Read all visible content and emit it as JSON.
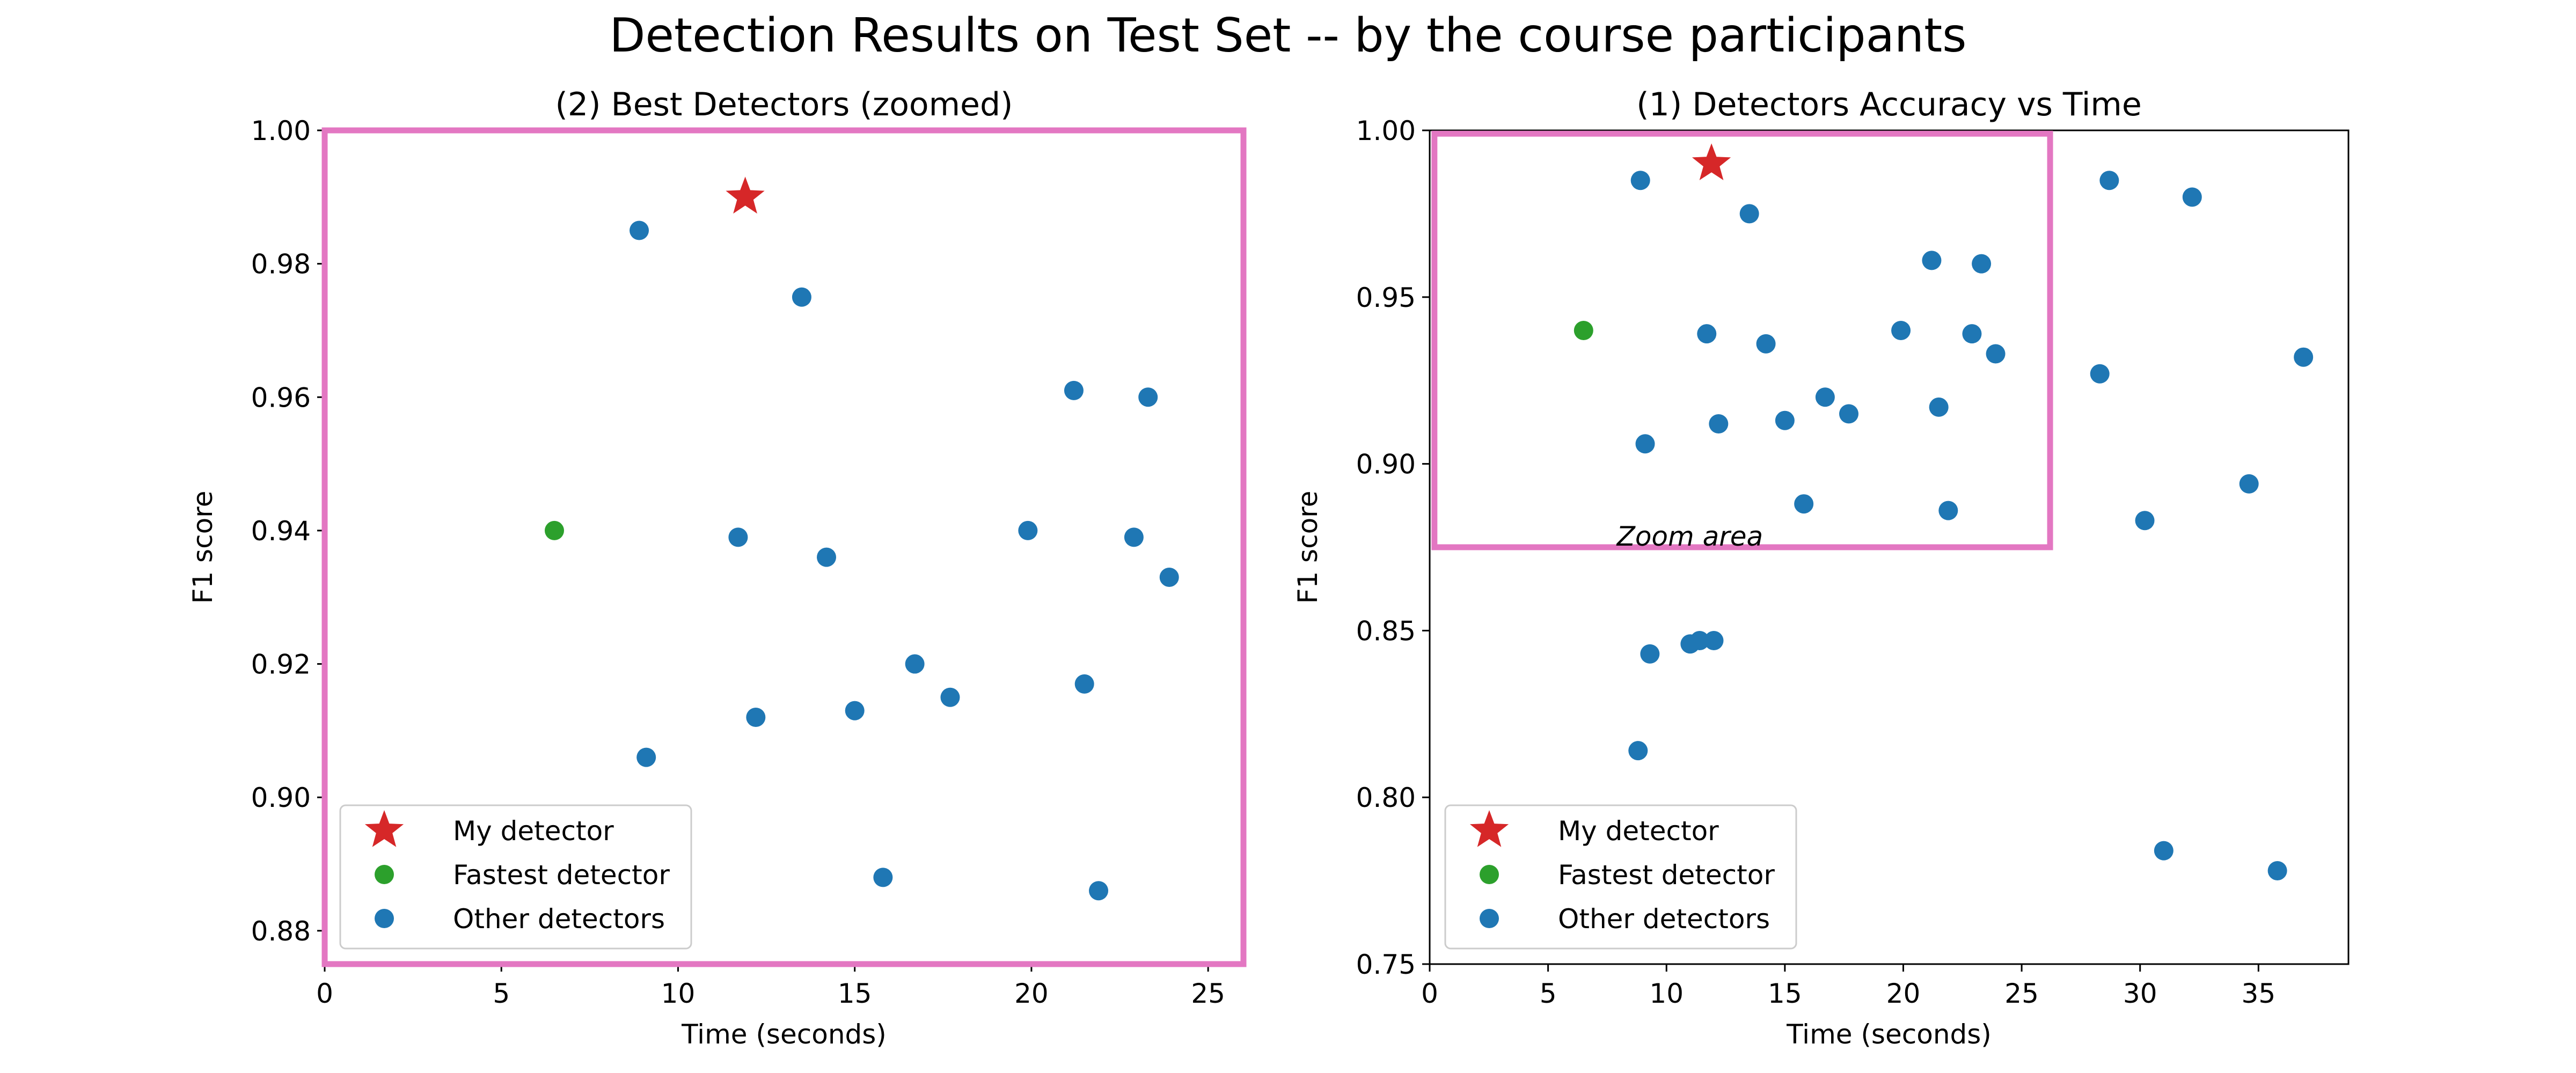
{
  "figure": {
    "suptitle": "Detection Results on Test Set -- by the course participants"
  },
  "colors": {
    "my_detector": "#d62728",
    "fastest_detector": "#2ca02c",
    "other_detectors": "#1f77b4",
    "zoom_box": "#e377c2"
  },
  "chart_data": [
    {
      "type": "scatter",
      "title": "(2) Best Detectors (zoomed)",
      "xlabel": "Time (seconds)",
      "ylabel": "F1 score",
      "xlim": [
        0,
        26
      ],
      "ylim": [
        0.875,
        1.0
      ],
      "xticks": [
        0,
        5,
        10,
        15,
        20,
        25
      ],
      "yticks": [
        0.88,
        0.9,
        0.92,
        0.94,
        0.96,
        0.98,
        1.0
      ],
      "ytick_decimals": 2,
      "frame_highlighted": true,
      "legend_position": "lower-left",
      "legend": [
        "My detector",
        "Fastest detector",
        "Other detectors"
      ],
      "series": [
        {
          "name": "My detector",
          "marker": "star",
          "color_key": "my_detector",
          "points": [
            [
              11.9,
              0.99
            ]
          ]
        },
        {
          "name": "Fastest detector",
          "marker": "circle",
          "color_key": "fastest_detector",
          "points": [
            [
              6.5,
              0.94
            ]
          ]
        },
        {
          "name": "Other detectors",
          "marker": "circle",
          "color_key": "other_detectors",
          "points": [
            [
              8.9,
              0.985
            ],
            [
              13.5,
              0.975
            ],
            [
              21.2,
              0.961
            ],
            [
              23.3,
              0.96
            ],
            [
              11.7,
              0.939
            ],
            [
              14.2,
              0.936
            ],
            [
              19.9,
              0.94
            ],
            [
              22.9,
              0.939
            ],
            [
              23.9,
              0.933
            ],
            [
              16.7,
              0.92
            ],
            [
              21.5,
              0.917
            ],
            [
              17.7,
              0.915
            ],
            [
              15.0,
              0.913
            ],
            [
              12.2,
              0.912
            ],
            [
              9.1,
              0.906
            ],
            [
              15.8,
              0.888
            ],
            [
              21.9,
              0.886
            ]
          ]
        }
      ]
    },
    {
      "type": "scatter",
      "title": "(1) Detectors Accuracy vs Time",
      "xlabel": "Time (seconds)",
      "ylabel": "F1 score",
      "xlim": [
        0,
        38.8
      ],
      "ylim": [
        0.75,
        1.0
      ],
      "xticks": [
        0,
        5,
        10,
        15,
        20,
        25,
        30,
        35
      ],
      "yticks": [
        0.75,
        0.8,
        0.85,
        0.9,
        0.95,
        1.0
      ],
      "ytick_decimals": 2,
      "frame_highlighted": false,
      "legend_position": "lower-left",
      "legend": [
        "My detector",
        "Fastest detector",
        "Other detectors"
      ],
      "zoom_region": {
        "x": [
          0.2,
          26.2
        ],
        "y": [
          0.875,
          0.999
        ],
        "label": "Zoom area",
        "label_at": [
          7.9,
          0.8755
        ]
      },
      "series": [
        {
          "name": "My detector",
          "marker": "star",
          "color_key": "my_detector",
          "points": [
            [
              11.9,
              0.99
            ]
          ]
        },
        {
          "name": "Fastest detector",
          "marker": "circle",
          "color_key": "fastest_detector",
          "points": [
            [
              6.5,
              0.94
            ]
          ]
        },
        {
          "name": "Other detectors",
          "marker": "circle",
          "color_key": "other_detectors",
          "points": [
            [
              8.9,
              0.985
            ],
            [
              13.5,
              0.975
            ],
            [
              21.2,
              0.961
            ],
            [
              23.3,
              0.96
            ],
            [
              11.7,
              0.939
            ],
            [
              14.2,
              0.936
            ],
            [
              19.9,
              0.94
            ],
            [
              22.9,
              0.939
            ],
            [
              23.9,
              0.933
            ],
            [
              16.7,
              0.92
            ],
            [
              21.5,
              0.917
            ],
            [
              17.7,
              0.915
            ],
            [
              15.0,
              0.913
            ],
            [
              12.2,
              0.912
            ],
            [
              9.1,
              0.906
            ],
            [
              15.8,
              0.888
            ],
            [
              21.9,
              0.886
            ],
            [
              28.7,
              0.985
            ],
            [
              32.2,
              0.98
            ],
            [
              28.3,
              0.927
            ],
            [
              36.9,
              0.932
            ],
            [
              34.6,
              0.894
            ],
            [
              30.2,
              0.883
            ],
            [
              9.3,
              0.843
            ],
            [
              11.0,
              0.846
            ],
            [
              11.4,
              0.847
            ],
            [
              12.0,
              0.847
            ],
            [
              8.8,
              0.814
            ],
            [
              31.0,
              0.784
            ],
            [
              35.8,
              0.778
            ]
          ]
        }
      ]
    }
  ]
}
